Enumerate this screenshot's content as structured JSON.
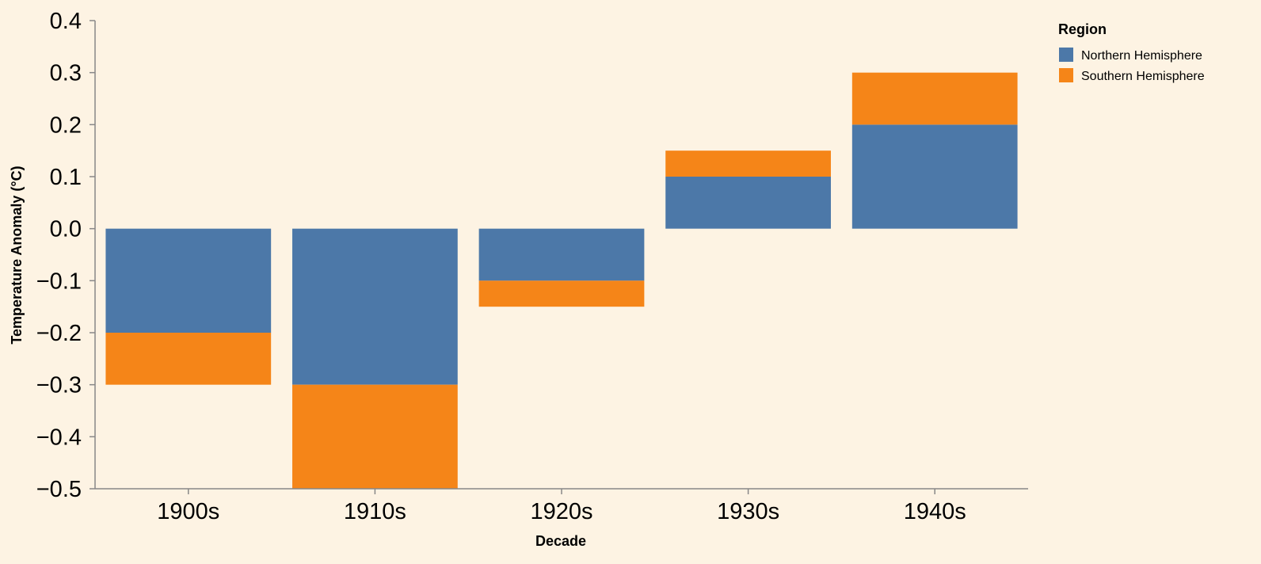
{
  "chart_data": {
    "type": "bar",
    "stacked": true,
    "categories": [
      "1900s",
      "1910s",
      "1920s",
      "1930s",
      "1940s"
    ],
    "series": [
      {
        "name": "Northern Hemisphere",
        "color": "#4c78a8",
        "values": [
          -0.2,
          -0.3,
          -0.1,
          0.1,
          0.2
        ]
      },
      {
        "name": "Southern Hemisphere",
        "color": "#f58518",
        "values": [
          -0.1,
          -0.2,
          -0.05,
          0.05,
          0.1
        ]
      }
    ],
    "xlabel": "Decade",
    "ylabel": "Temperature Anomaly (°C)",
    "ylim": [
      -0.5,
      0.4
    ],
    "yticks": [
      "−0.5",
      "−0.4",
      "−0.3",
      "−0.2",
      "−0.1",
      "0.0",
      "0.1",
      "0.2",
      "0.3",
      "0.4"
    ],
    "legend": {
      "title": "Region",
      "placement": "top-right"
    },
    "grid": false,
    "background": "#fdf3e3"
  }
}
